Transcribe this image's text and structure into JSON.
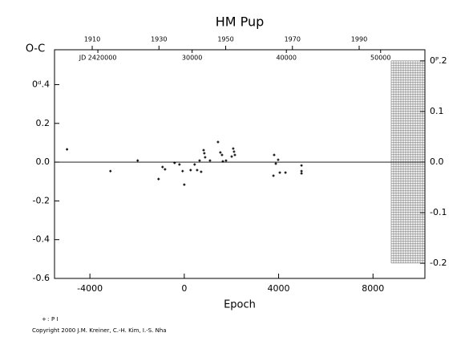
{
  "chart_data": {
    "type": "scatter",
    "title": "HM Pup",
    "xlabel": "Epoch",
    "ylabel": "O-C",
    "xlim": [
      -5500,
      10200
    ],
    "xticks": [
      -4000,
      0,
      4000,
      8000
    ],
    "ylim": [
      -0.6,
      0.58
    ],
    "yticks": [
      -0.6,
      -0.4,
      -0.2,
      {
        "value": 0,
        "label": "0.0"
      },
      0.2,
      {
        "value": 0.4,
        "label": "0ᵈ.4"
      }
    ],
    "y2lim": [
      -0.23,
      0.222
    ],
    "y2ticks": [
      {
        "value": 0.2,
        "label": "0ᴾ.2"
      },
      0.1,
      {
        "value": 0,
        "label": "0.0"
      },
      -0.1,
      -0.2
    ],
    "top_axis_years": {
      "lim": [
        1898.7,
        2009.7
      ],
      "ticks": [
        1910,
        1930,
        1950,
        1970,
        1990
      ]
    },
    "top_axis_jd": {
      "lim": [
        2415400,
        2454700
      ],
      "ticks": [
        {
          "value": 2420000,
          "label": "JD 2420000"
        },
        {
          "value": 2430000,
          "label": "30000"
        },
        {
          "value": 2440000,
          "label": "40000"
        },
        {
          "value": 2450000,
          "label": "50000"
        }
      ]
    },
    "series": [
      {
        "name": "P I",
        "symbol": "+",
        "color": "#000000",
        "x": [
          -4970,
          -3130,
          -1975,
          -1090,
          -920,
          -815,
          -410,
          -205,
          -70,
          0,
          270,
          440,
          545,
          650,
          715,
          820,
          850,
          885,
          1090,
          1430,
          1530,
          1600,
          1635,
          1770,
          2010,
          2075,
          2110,
          2145,
          3780,
          3810,
          3880,
          3980,
          4050,
          4290,
          4970,
          4970,
          4970
        ],
        "values": [
          0.066,
          -0.046,
          0.008,
          -0.087,
          -0.025,
          -0.037,
          -0.004,
          -0.012,
          -0.046,
          -0.116,
          -0.041,
          -0.012,
          -0.041,
          0.008,
          -0.05,
          0.062,
          0.046,
          0.025,
          0.008,
          0.104,
          0.05,
          0.037,
          0.004,
          0.008,
          0.029,
          0.07,
          0.054,
          0.037,
          -0.07,
          0.037,
          -0.008,
          0.012,
          -0.054,
          -0.054,
          -0.017,
          -0.046,
          -0.058
        ]
      }
    ],
    "footer": "Copyright 2000 J.M. Kreiner, C.-H. Kim, I.-S. Nha"
  }
}
